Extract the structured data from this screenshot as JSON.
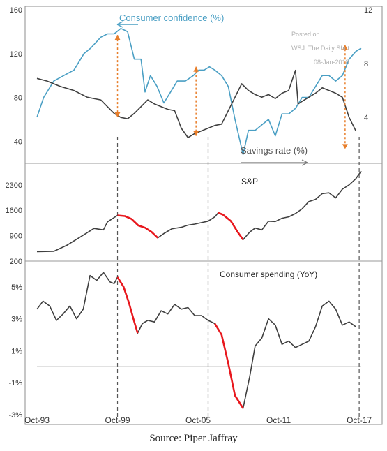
{
  "caption": "Source: Piper Jaffray",
  "watermark": [
    "Posted on",
    "WSJ: The Daily Shot",
    "08-Jan-2018"
  ],
  "x_axis": {
    "range": [
      1993.75,
      2017.9
    ],
    "ticks": [
      {
        "value": 1993.75,
        "label": "Oct-93"
      },
      {
        "value": 1999.75,
        "label": "Oct-99"
      },
      {
        "value": 2005.75,
        "label": "Oct-05"
      },
      {
        "value": 2011.75,
        "label": "Oct-11"
      },
      {
        "value": 2017.75,
        "label": "Oct-17"
      }
    ],
    "reference_lines": [
      1999.75,
      2006.5,
      2017.75
    ]
  },
  "colors": {
    "confidence": "#4a9fc4",
    "savings": "#3f3f3f",
    "line": "#3f3f3f",
    "highlight": "#e8181e",
    "arrow": "#e87e2a",
    "dash": "#555555"
  },
  "chart_data": [
    {
      "type": "line",
      "panel": "top",
      "grid": false,
      "annotations": [
        "Consumer confidence (%)",
        "Savings rate (%)"
      ],
      "left_axis": {
        "ylim": [
          25,
          160
        ],
        "ticks": [
          40,
          80,
          120,
          160
        ]
      },
      "right_axis": {
        "ylim": [
          1.0,
          12.0
        ],
        "ticks": [
          4,
          8,
          12
        ]
      },
      "series": [
        {
          "name": "Consumer confidence (%)",
          "axis": "left",
          "color": "#4a9fc4",
          "x": [
            1993.75,
            1994.25,
            1995.0,
            1995.75,
            1996.5,
            1997.25,
            1997.75,
            1998.5,
            1999.0,
            1999.5,
            2000.0,
            2000.5,
            2001.0,
            2001.5,
            2001.8,
            2002.2,
            2002.7,
            2003.2,
            2003.7,
            2004.2,
            2004.8,
            2005.4,
            2005.8,
            2006.2,
            2006.6,
            2007.0,
            2007.5,
            2008.0,
            2008.5,
            2009.1,
            2009.5,
            2010.0,
            2010.5,
            2011.0,
            2011.5,
            2012.0,
            2012.5,
            2013.0,
            2013.5,
            2014.0,
            2014.5,
            2015.0,
            2015.5,
            2016.0,
            2016.5,
            2017.0,
            2017.5,
            2017.9
          ],
          "y": [
            62,
            80,
            95,
            100,
            105,
            120,
            125,
            135,
            138,
            138,
            143,
            140,
            115,
            115,
            85,
            100,
            90,
            75,
            85,
            95,
            95,
            100,
            105,
            105,
            108,
            105,
            100,
            90,
            60,
            28,
            50,
            50,
            55,
            60,
            45,
            65,
            65,
            70,
            80,
            80,
            90,
            100,
            100,
            95,
            100,
            115,
            122,
            125
          ]
        },
        {
          "name": "Savings rate (%)",
          "axis": "right",
          "color": "#3f3f3f",
          "x": [
            1993.75,
            1994.5,
            1995.5,
            1996.5,
            1997.5,
            1998.5,
            1999.0,
            1999.5,
            2000.0,
            2000.5,
            2001.0,
            2001.5,
            2002.0,
            2002.5,
            2003.0,
            2003.5,
            2004.0,
            2004.5,
            2005.0,
            2005.5,
            2006.0,
            2006.5,
            2007.0,
            2007.5,
            2008.0,
            2008.5,
            2009.0,
            2009.5,
            2010.0,
            2010.5,
            2011.0,
            2011.5,
            2012.0,
            2012.5,
            2013.0,
            2013.2,
            2013.5,
            2014.0,
            2014.5,
            2015.0,
            2015.5,
            2016.0,
            2016.5,
            2017.0,
            2017.5
          ],
          "y": [
            6.9,
            6.7,
            6.3,
            6.0,
            5.5,
            5.3,
            4.8,
            4.3,
            4.0,
            3.9,
            4.3,
            4.8,
            5.3,
            5.0,
            4.8,
            4.6,
            4.5,
            3.2,
            2.5,
            2.8,
            3.0,
            3.2,
            3.4,
            3.5,
            4.5,
            5.5,
            6.5,
            6.0,
            5.7,
            5.5,
            5.7,
            5.4,
            5.8,
            6.0,
            7.5,
            5.0,
            5.2,
            5.5,
            5.8,
            6.2,
            6.0,
            5.8,
            5.5,
            4.0,
            3.0
          ]
        }
      ],
      "arrows": [
        {
          "x": 1999.75,
          "y_from": 137,
          "y_to": 62
        },
        {
          "x": 2005.6,
          "y_from": 108,
          "y_to": 45
        },
        {
          "x": 2016.7,
          "y_from": 128,
          "y_to": 33
        }
      ]
    },
    {
      "type": "line",
      "panel": "middle",
      "title": "S&P",
      "grid": false,
      "ylim": [
        200,
        2700
      ],
      "yticks": [
        {
          "value": 2300,
          "label": "2300"
        },
        {
          "value": 1600,
          "label": "1600"
        },
        {
          "value": 900,
          "label": "900"
        },
        {
          "value": 200,
          "label": "200"
        }
      ],
      "highlight_ranges": [
        [
          1999.75,
          2002.75
        ],
        [
          2007.25,
          2009.1
        ]
      ],
      "series": [
        {
          "name": "S&P",
          "color": "#3f3f3f",
          "x": [
            1993.75,
            1995.0,
            1996.0,
            1997.0,
            1998.0,
            1998.7,
            1999.0,
            1999.75,
            2000.3,
            2000.8,
            2001.3,
            2001.8,
            2002.3,
            2002.75,
            2003.2,
            2003.8,
            2004.5,
            2005.0,
            2005.5,
            2006.0,
            2006.5,
            2007.0,
            2007.25,
            2007.6,
            2008.2,
            2008.7,
            2009.1,
            2009.6,
            2010.0,
            2010.5,
            2011.0,
            2011.5,
            2012.0,
            2012.5,
            2013.0,
            2013.5,
            2014.0,
            2014.5,
            2015.0,
            2015.5,
            2016.0,
            2016.5,
            2017.0,
            2017.5,
            2017.9
          ],
          "y": [
            460,
            470,
            640,
            870,
            1100,
            1060,
            1280,
            1460,
            1440,
            1360,
            1180,
            1120,
            1000,
            840,
            960,
            1090,
            1130,
            1190,
            1220,
            1260,
            1300,
            1420,
            1530,
            1480,
            1300,
            1000,
            790,
            1000,
            1110,
            1060,
            1300,
            1290,
            1380,
            1420,
            1510,
            1640,
            1840,
            1900,
            2060,
            2080,
            1940,
            2180,
            2300,
            2470,
            2680
          ]
        }
      ]
    },
    {
      "type": "line",
      "panel": "bottom",
      "title": "Consumer spending  (YoY)",
      "grid": false,
      "ylim": [
        -3.0,
        6.3
      ],
      "zero_line": 0,
      "yticks": [
        {
          "value": 5,
          "label": "5%"
        },
        {
          "value": 3,
          "label": "3%"
        },
        {
          "value": 1,
          "label": "1%"
        },
        {
          "value": -1,
          "label": "-1%"
        },
        {
          "value": -3,
          "label": "-3%"
        }
      ],
      "highlight_ranges": [
        [
          1999.75,
          2001.25
        ],
        [
          2007.0,
          2009.1
        ]
      ],
      "series": [
        {
          "name": "Consumer spending (YoY)",
          "color": "#3f3f3f",
          "x": [
            1993.75,
            1994.2,
            1994.7,
            1995.2,
            1995.7,
            1996.2,
            1996.7,
            1997.2,
            1997.7,
            1998.2,
            1998.7,
            1999.2,
            1999.5,
            1999.75,
            2000.2,
            2000.6,
            2001.0,
            2001.25,
            2001.6,
            2002.0,
            2002.5,
            2003.0,
            2003.5,
            2004.0,
            2004.5,
            2005.0,
            2005.5,
            2006.0,
            2006.5,
            2007.0,
            2007.5,
            2008.0,
            2008.5,
            2009.1,
            2009.6,
            2010.0,
            2010.5,
            2011.0,
            2011.5,
            2012.0,
            2012.5,
            2013.0,
            2013.5,
            2014.0,
            2014.5,
            2015.0,
            2015.5,
            2016.0,
            2016.5,
            2017.0,
            2017.5
          ],
          "y": [
            3.6,
            4.1,
            3.8,
            2.9,
            3.3,
            3.8,
            3.0,
            3.6,
            5.7,
            5.4,
            5.9,
            5.3,
            5.2,
            5.6,
            5.0,
            4.0,
            2.8,
            2.1,
            2.7,
            2.9,
            2.8,
            3.5,
            3.3,
            3.9,
            3.6,
            3.7,
            3.2,
            3.2,
            2.9,
            2.7,
            2.0,
            0.2,
            -1.8,
            -2.6,
            -0.6,
            1.3,
            1.8,
            3.0,
            2.6,
            1.4,
            1.6,
            1.2,
            1.4,
            1.6,
            2.5,
            3.8,
            4.1,
            3.6,
            2.6,
            2.8,
            2.5
          ]
        }
      ]
    }
  ]
}
